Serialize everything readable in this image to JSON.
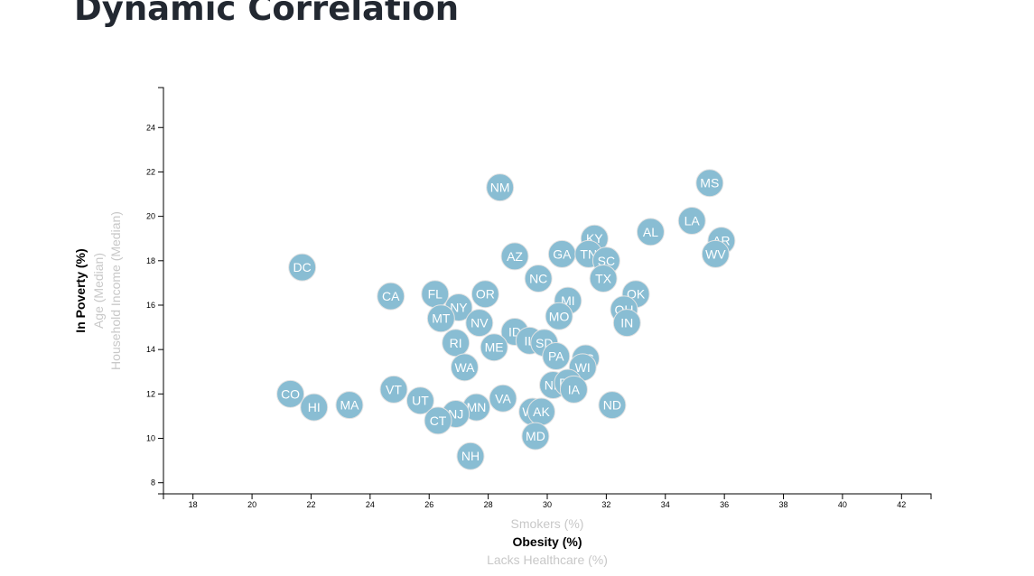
{
  "page": {
    "title": "Dynamic Correlation"
  },
  "chart_data": {
    "type": "scatter",
    "xlabel": "Obesity (%)",
    "ylabel": "In Poverty (%)",
    "x_axis_options": [
      {
        "label": "Smokers (%)",
        "active": false
      },
      {
        "label": "Obesity (%)",
        "active": true
      },
      {
        "label": "Lacks Healthcare (%)",
        "active": false
      }
    ],
    "y_axis_options": [
      {
        "label": "Household Income (Median)",
        "active": false
      },
      {
        "label": "Age (Median)",
        "active": false
      },
      {
        "label": "In Poverty (%)",
        "active": true
      }
    ],
    "xlim": [
      17,
      43
    ],
    "ylim": [
      7.5,
      25.8
    ],
    "x_ticks": [
      18,
      20,
      22,
      24,
      26,
      28,
      30,
      32,
      34,
      36,
      38,
      40,
      42
    ],
    "y_ticks": [
      8,
      10,
      12,
      14,
      16,
      18,
      20,
      22,
      24
    ],
    "grid": false,
    "points": [
      {
        "label": "MS",
        "x": 35.5,
        "y": 21.5
      },
      {
        "label": "NM",
        "x": 28.4,
        "y": 21.3
      },
      {
        "label": "LA",
        "x": 34.9,
        "y": 19.8
      },
      {
        "label": "AL",
        "x": 33.5,
        "y": 19.3
      },
      {
        "label": "AR",
        "x": 35.9,
        "y": 18.9
      },
      {
        "label": "KY",
        "x": 31.6,
        "y": 19.0
      },
      {
        "label": "WV",
        "x": 35.7,
        "y": 18.3
      },
      {
        "label": "AZ",
        "x": 28.9,
        "y": 18.2
      },
      {
        "label": "GA",
        "x": 30.5,
        "y": 18.3
      },
      {
        "label": "TN",
        "x": 31.4,
        "y": 18.3
      },
      {
        "label": "SC",
        "x": 32.0,
        "y": 18.0
      },
      {
        "label": "DC",
        "x": 21.7,
        "y": 17.7
      },
      {
        "label": "NC",
        "x": 29.7,
        "y": 17.2
      },
      {
        "label": "TX",
        "x": 31.9,
        "y": 17.2
      },
      {
        "label": "OK",
        "x": 33.0,
        "y": 16.5
      },
      {
        "label": "OR",
        "x": 27.9,
        "y": 16.5
      },
      {
        "label": "FL",
        "x": 26.2,
        "y": 16.5
      },
      {
        "label": "CA",
        "x": 24.7,
        "y": 16.4
      },
      {
        "label": "MI",
        "x": 30.7,
        "y": 16.2
      },
      {
        "label": "NY",
        "x": 27.0,
        "y": 15.9
      },
      {
        "label": "OH",
        "x": 32.6,
        "y": 15.8
      },
      {
        "label": "MO",
        "x": 30.4,
        "y": 15.5
      },
      {
        "label": "MT",
        "x": 26.4,
        "y": 15.4
      },
      {
        "label": "IN",
        "x": 32.7,
        "y": 15.2
      },
      {
        "label": "NV",
        "x": 27.7,
        "y": 15.2
      },
      {
        "label": "ID",
        "x": 28.9,
        "y": 14.8
      },
      {
        "label": "IL",
        "x": 29.4,
        "y": 14.4
      },
      {
        "label": "SD",
        "x": 29.9,
        "y": 14.3
      },
      {
        "label": "RI",
        "x": 26.9,
        "y": 14.3
      },
      {
        "label": "ME",
        "x": 28.2,
        "y": 14.1
      },
      {
        "label": "PA",
        "x": 30.3,
        "y": 13.7
      },
      {
        "label": "KS",
        "x": 31.3,
        "y": 13.6
      },
      {
        "label": "WI",
        "x": 31.2,
        "y": 13.2
      },
      {
        "label": "WA",
        "x": 27.2,
        "y": 13.2
      },
      {
        "label": "NE",
        "x": 30.2,
        "y": 12.4
      },
      {
        "label": "DE",
        "x": 30.7,
        "y": 12.5
      },
      {
        "label": "IA",
        "x": 30.9,
        "y": 12.2
      },
      {
        "label": "VT",
        "x": 24.8,
        "y": 12.2
      },
      {
        "label": "CO",
        "x": 21.3,
        "y": 12.0
      },
      {
        "label": "VA",
        "x": 28.5,
        "y": 11.8
      },
      {
        "label": "UT",
        "x": 25.7,
        "y": 11.7
      },
      {
        "label": "MA",
        "x": 23.3,
        "y": 11.5
      },
      {
        "label": "ND",
        "x": 32.2,
        "y": 11.5
      },
      {
        "label": "MN",
        "x": 27.6,
        "y": 11.4
      },
      {
        "label": "HI",
        "x": 22.1,
        "y": 11.4
      },
      {
        "label": "WY",
        "x": 29.5,
        "y": 11.2
      },
      {
        "label": "AK",
        "x": 29.8,
        "y": 11.2
      },
      {
        "label": "NJ",
        "x": 26.9,
        "y": 11.1
      },
      {
        "label": "CT",
        "x": 26.3,
        "y": 10.8
      },
      {
        "label": "MD",
        "x": 29.6,
        "y": 10.1
      },
      {
        "label": "NH",
        "x": 27.4,
        "y": 9.2
      }
    ]
  }
}
